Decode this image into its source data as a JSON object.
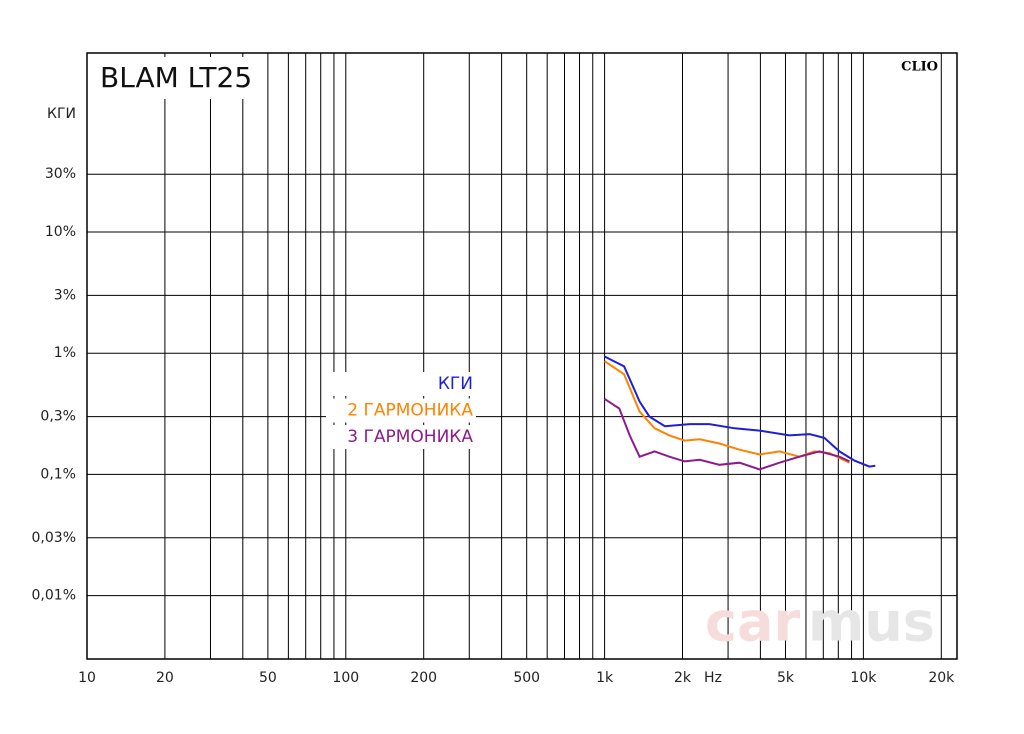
{
  "chart_data": {
    "type": "line",
    "title": "BLAM LT25",
    "brand": "CLIO",
    "y_label": "КГИ",
    "x_unit": "Hz",
    "watermark": [
      "car",
      "mus"
    ],
    "log_x": true,
    "log_y": true,
    "grid": true,
    "xlim": [
      10,
      23000
    ],
    "ylim": [
      0.003,
      300
    ],
    "xticks": [
      10,
      20,
      {
        "value": 30,
        "label": null
      },
      {
        "value": 40,
        "label": null
      },
      50,
      {
        "value": 60,
        "label": null
      },
      {
        "value": 70,
        "label": null
      },
      {
        "value": 80,
        "label": null
      },
      {
        "value": 90,
        "label": null
      },
      100,
      200,
      {
        "value": 300,
        "label": null
      },
      {
        "value": 400,
        "label": null
      },
      500,
      {
        "value": 600,
        "label": null
      },
      {
        "value": 700,
        "label": null
      },
      {
        "value": 800,
        "label": null
      },
      {
        "value": 900,
        "label": null
      },
      {
        "value": 1000,
        "label": "1k"
      },
      {
        "value": 2000,
        "label": "2k"
      },
      {
        "value": 3000,
        "label": null
      },
      {
        "value": 4000,
        "label": null
      },
      {
        "value": 5000,
        "label": "5k"
      },
      {
        "value": 6000,
        "label": null
      },
      {
        "value": 7000,
        "label": null
      },
      {
        "value": 8000,
        "label": null
      },
      {
        "value": 9000,
        "label": null
      },
      {
        "value": 10000,
        "label": "10k"
      },
      {
        "value": 20000,
        "label": "20k"
      }
    ],
    "yticks": [
      {
        "value": 30,
        "label": "30%"
      },
      {
        "value": 10,
        "label": "10%"
      },
      {
        "value": 3,
        "label": "3%"
      },
      {
        "value": 1,
        "label": "1%"
      },
      {
        "value": 0.3,
        "label": "0,3%"
      },
      {
        "value": 0.1,
        "label": "0,1%"
      },
      {
        "value": 0.03,
        "label": "0,03%"
      },
      {
        "value": 0.01,
        "label": "0,01%"
      }
    ],
    "series": [
      {
        "name": "КГИ",
        "color": "#1f1fd6",
        "x": [
          1000,
          1190,
          1365,
          1490,
          1710,
          2130,
          2540,
          3180,
          3970,
          5180,
          6200,
          7070,
          8080,
          9230,
          10550,
          11120
        ],
        "values": [
          0.94,
          0.78,
          0.4,
          0.3,
          0.25,
          0.26,
          0.26,
          0.24,
          0.23,
          0.21,
          0.215,
          0.2,
          0.155,
          0.13,
          0.116,
          0.118
        ]
      },
      {
        "name": "2 ГАРМОНИКА",
        "color": "#ff8200",
        "x": [
          1000,
          1190,
          1365,
          1560,
          1780,
          2040,
          2330,
          2780,
          3320,
          3970,
          4740,
          5660,
          6470,
          7390,
          8830
        ],
        "values": [
          0.86,
          0.67,
          0.33,
          0.24,
          0.21,
          0.19,
          0.195,
          0.18,
          0.16,
          0.146,
          0.155,
          0.14,
          0.155,
          0.15,
          0.125
        ]
      },
      {
        "name": "3 ГАРМОНИКА",
        "color": "#8e1a8e",
        "x": [
          1000,
          1140,
          1250,
          1365,
          1560,
          1780,
          2040,
          2330,
          2780,
          3320,
          3970,
          4740,
          5660,
          6760,
          8080,
          8830
        ],
        "values": [
          0.42,
          0.35,
          0.21,
          0.14,
          0.155,
          0.14,
          0.128,
          0.132,
          0.12,
          0.125,
          0.11,
          0.125,
          0.14,
          0.155,
          0.14,
          0.128
        ]
      }
    ]
  }
}
